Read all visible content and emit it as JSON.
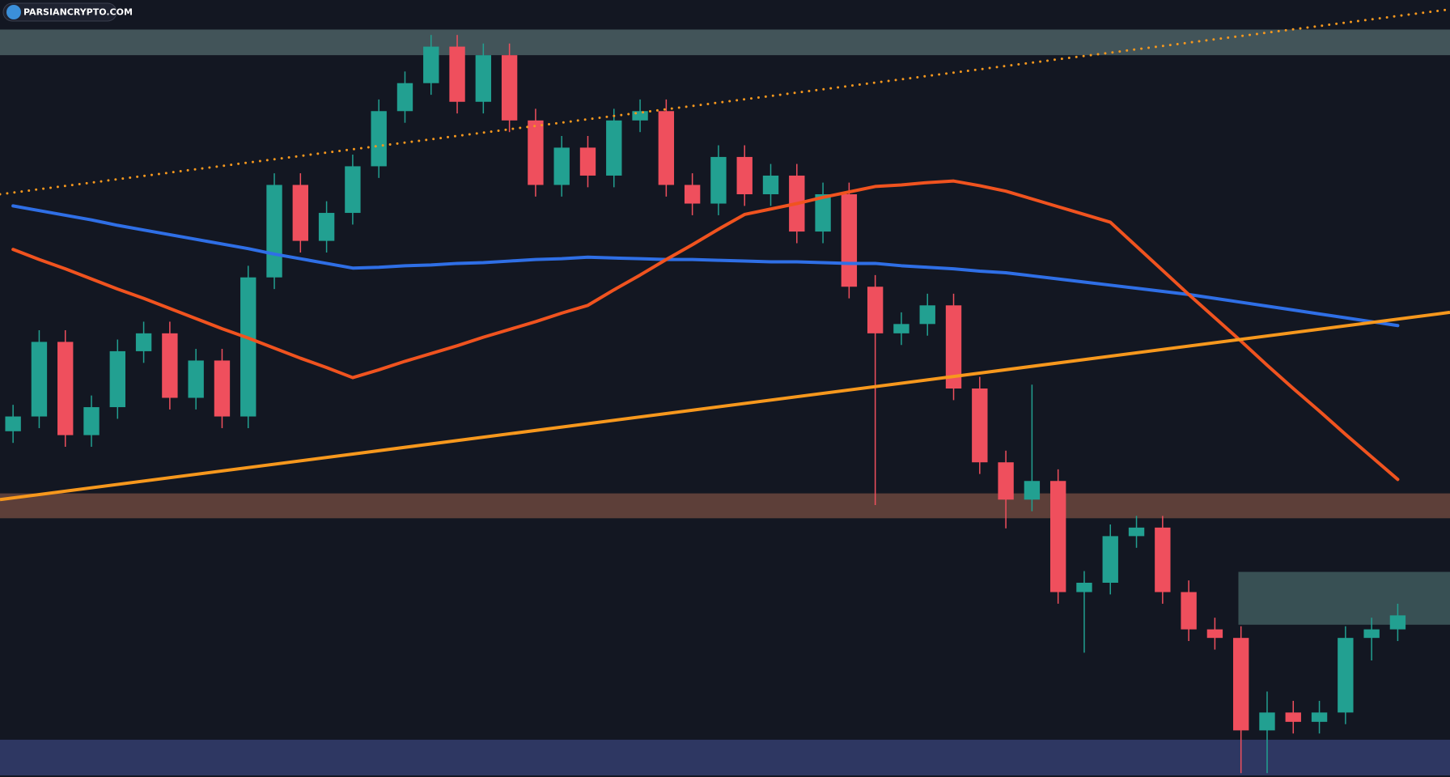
{
  "watermark": "PARSIANCRYPTO.COM",
  "chart_data": {
    "type": "candlestick",
    "ylim": [
      0,
      100
    ],
    "xlim": [
      -0.5,
      55
    ],
    "up_color": "#22a091",
    "down_color": "#ef4f5d",
    "open": [
      44.5,
      46.4,
      56,
      44,
      47.6,
      54.8,
      57.1,
      48.8,
      53.6,
      46.4,
      64.3,
      76.2,
      69,
      72.6,
      78.6,
      85.7,
      89.3,
      94,
      86.9,
      92.9,
      84.5,
      76.2,
      81,
      77.4,
      84.5,
      85.7,
      76.2,
      73.8,
      79.8,
      75,
      77.4,
      70.2,
      75,
      63.1,
      57.1,
      58.3,
      60.7,
      50,
      40.5,
      35.7,
      38.1,
      23.8,
      25,
      31,
      32.1,
      23.8,
      19,
      17.9,
      6,
      8.3,
      7.1,
      8.3,
      17.9,
      19
    ],
    "high": [
      47.9,
      57.5,
      57.5,
      49.1,
      56.3,
      58.6,
      58.6,
      55.1,
      55.1,
      65.8,
      77.7,
      77.7,
      74.1,
      80.1,
      87.2,
      90.8,
      95.5,
      95.5,
      94.4,
      94.4,
      86,
      82.5,
      82.5,
      86,
      87.2,
      87.2,
      77.7,
      81.3,
      81.3,
      78.9,
      78.9,
      76.5,
      76.5,
      64.6,
      59.8,
      62.2,
      62.2,
      51.5,
      42,
      50.5,
      39.6,
      26.5,
      32.5,
      33.6,
      33.6,
      25.3,
      20.5,
      19.4,
      11,
      9.8,
      9.8,
      19.4,
      20.5,
      22.3
    ],
    "low": [
      43,
      44.9,
      42.5,
      42.5,
      46.1,
      53.3,
      47.3,
      47.3,
      44.9,
      44.9,
      62.8,
      67.5,
      67.5,
      71.1,
      77.1,
      84.2,
      87.8,
      85.4,
      85.4,
      83,
      74.7,
      74.7,
      75.9,
      75.9,
      83,
      74.7,
      72.3,
      72.3,
      73.5,
      73.5,
      68.7,
      68.7,
      61.6,
      35,
      55.6,
      56.8,
      48.5,
      39,
      32,
      34.2,
      22.3,
      16,
      23.5,
      29.5,
      22.3,
      17.5,
      16.4,
      0.5,
      0.5,
      5.6,
      5.6,
      6.8,
      15,
      17.5
    ],
    "close": [
      46.4,
      56,
      44,
      47.6,
      54.8,
      57.1,
      48.8,
      53.6,
      46.4,
      64.3,
      76.2,
      69,
      72.6,
      78.6,
      85.7,
      89.3,
      94,
      86.9,
      92.9,
      84.5,
      76.2,
      81,
      77.4,
      84.5,
      85.7,
      76.2,
      73.8,
      79.8,
      75,
      77.4,
      70.2,
      75,
      63.1,
      57.1,
      58.3,
      60.7,
      50,
      40.5,
      35.7,
      38.1,
      23.8,
      25,
      31,
      32.1,
      23.8,
      19,
      17.9,
      6,
      8.3,
      7.1,
      8.3,
      17.9,
      19,
      20.8
    ],
    "averages": [
      {
        "color": "#2f6fe6",
        "values": [
          73.5,
          72.9,
          72.3,
          71.7,
          71,
          70.4,
          69.8,
          69.2,
          68.6,
          68,
          67.3,
          66.7,
          66.1,
          65.5,
          65.6,
          65.8,
          65.9,
          66.1,
          66.2,
          66.4,
          66.6,
          66.7,
          66.9,
          66.8,
          66.7,
          66.6,
          66.6,
          66.5,
          66.4,
          66.3,
          66.3,
          66.2,
          66.1,
          66.1,
          65.8,
          65.6,
          65.4,
          65.1,
          64.9,
          64.5,
          64.1,
          63.7,
          63.3,
          62.9,
          62.5,
          62.1,
          61.6,
          61.1,
          60.6,
          60.1,
          59.6,
          59.1,
          58.6,
          58.1
        ]
      },
      {
        "color": "#f0531f",
        "values": [
          67.9,
          66.6,
          65.4,
          64.1,
          62.8,
          61.6,
          60.3,
          59,
          57.7,
          56.5,
          55.2,
          53.9,
          52.7,
          51.4,
          52.4,
          53.5,
          54.5,
          55.5,
          56.6,
          57.6,
          58.6,
          59.7,
          60.7,
          62.7,
          64.6,
          66.6,
          68.5,
          70.5,
          72.4,
          73.1,
          73.8,
          74.6,
          75.3,
          76,
          76.2,
          76.5,
          76.7,
          76.1,
          75.4,
          74.4,
          73.4,
          72.4,
          71.4,
          68.3,
          65.2,
          62.1,
          59.1,
          56.1,
          53,
          50,
          47.1,
          44.1,
          41.2,
          38.3
        ]
      }
    ],
    "trendlines": [
      {
        "color": "#f7981d",
        "style": "solid",
        "x": [
          -0.5,
          55
        ],
        "values": [
          35.7,
          59.8
        ]
      },
      {
        "color": "#f7981d",
        "style": "dotted",
        "x": [
          -0.5,
          55
        ],
        "values": [
          75,
          98.8
        ]
      }
    ],
    "zones": [
      {
        "color": "#4b5f63",
        "x_start": -0.5,
        "range": [
          92.9,
          96.2
        ]
      },
      {
        "color": "#6b463d",
        "x_start": -0.5,
        "range": [
          33.3,
          36.5
        ]
      },
      {
        "color": "#3f5a5d",
        "x_start": 46.9,
        "range": [
          19.6,
          26.4
        ]
      },
      {
        "color": "#343d6d",
        "x_start": -0.5,
        "range": [
          0.2,
          4.8
        ]
      }
    ]
  }
}
